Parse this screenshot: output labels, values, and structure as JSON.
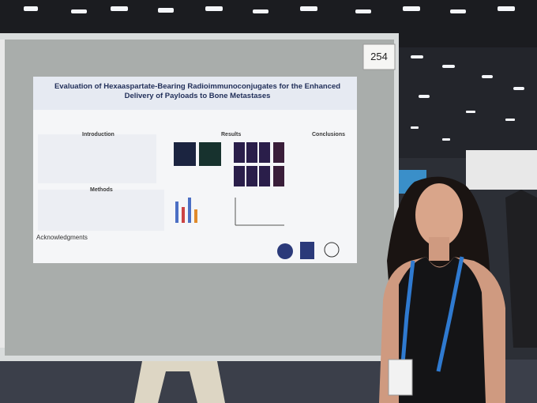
{
  "scene": {
    "board_number": "254",
    "poster": {
      "title": "Evaluation of Hexaaspartate-Bearing Radioimmunoconjugates for the Enhanced Delivery of Payloads to Bone Metastases",
      "sections": [
        "Introduction",
        "Results",
        "Conclusions",
        "Methods"
      ],
      "acknowledgments": "Acknowledgments"
    }
  }
}
